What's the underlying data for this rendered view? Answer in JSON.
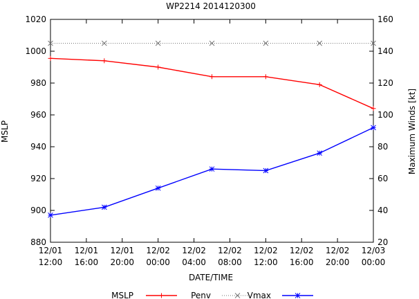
{
  "chart_data": {
    "type": "line",
    "title": "WP2214 2014120300",
    "xlabel": "DATE/TIME",
    "ylabel": "MSLP",
    "y2label": "Maximum Winds [kt]",
    "xlim": [
      0,
      36
    ],
    "ylim": [
      880,
      1020
    ],
    "y2lim": [
      20,
      160
    ],
    "x_ticks": [
      {
        "x": 0,
        "line1": "12/01",
        "line2": "12:00"
      },
      {
        "x": 4,
        "line1": "12/01",
        "line2": "16:00"
      },
      {
        "x": 8,
        "line1": "12/01",
        "line2": "20:00"
      },
      {
        "x": 12,
        "line1": "12/02",
        "line2": "00:00"
      },
      {
        "x": 16,
        "line1": "12/02",
        "line2": "04:00"
      },
      {
        "x": 20,
        "line1": "12/02",
        "line2": "08:00"
      },
      {
        "x": 24,
        "line1": "12/02",
        "line2": "12:00"
      },
      {
        "x": 28,
        "line1": "12/02",
        "line2": "16:00"
      },
      {
        "x": 32,
        "line1": "12/02",
        "line2": "20:00"
      },
      {
        "x": 36,
        "line1": "12/03",
        "line2": "00:00"
      }
    ],
    "y_ticks": [
      880,
      900,
      920,
      940,
      960,
      980,
      1000,
      1020
    ],
    "y2_ticks": [
      20,
      40,
      60,
      80,
      100,
      120,
      140,
      160
    ],
    "series": [
      {
        "name": "MSLP",
        "axis": "y",
        "color": "#ff0000",
        "marker": "plus",
        "x": [
          0,
          6,
          12,
          18,
          24,
          30,
          36
        ],
        "values": [
          995.5,
          994,
          990,
          984,
          984,
          979,
          964
        ]
      },
      {
        "name": "Penv",
        "axis": "y",
        "color": "#777777",
        "marker": "x",
        "dashed": true,
        "x": [
          0,
          6,
          12,
          18,
          24,
          30,
          36
        ],
        "values": [
          1005,
          1005,
          1005,
          1005,
          1005,
          1005,
          1005
        ]
      },
      {
        "name": "Vmax",
        "axis": "y2",
        "color": "#0000ff",
        "marker": "star",
        "x": [
          0,
          6,
          12,
          18,
          24,
          30,
          36
        ],
        "values": [
          37,
          42,
          54,
          66,
          65,
          76,
          92
        ]
      }
    ],
    "legend": [
      "MSLP",
      "Penv",
      "Vmax"
    ],
    "legend_position": "bottom"
  }
}
